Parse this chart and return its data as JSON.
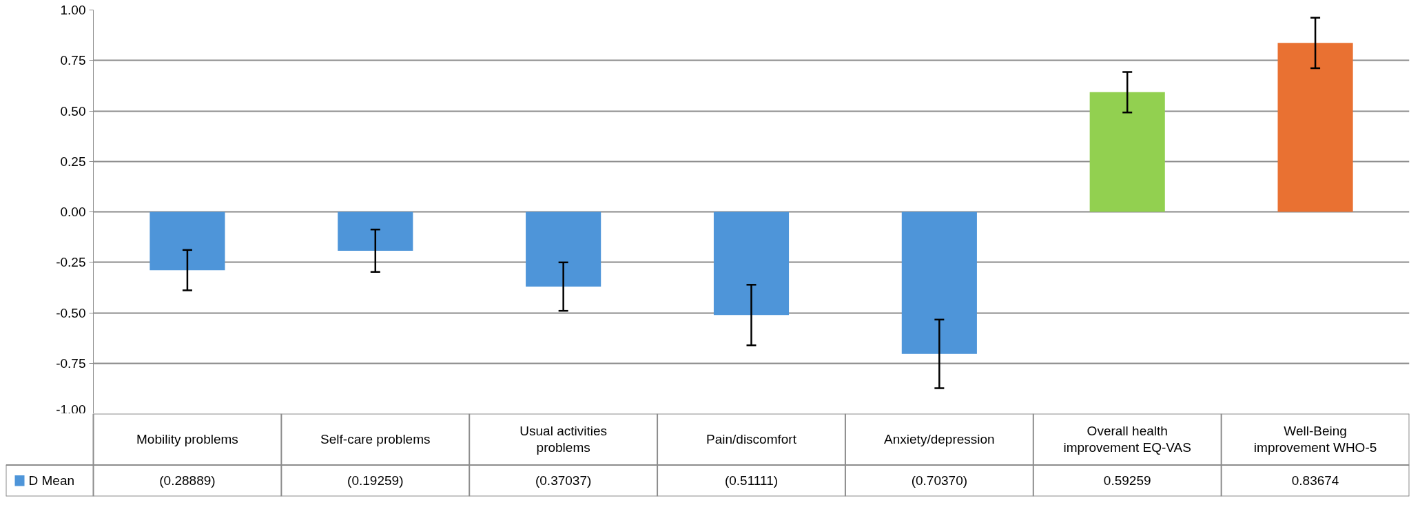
{
  "chart_data": {
    "type": "bar",
    "categories": [
      "Mobility problems",
      "Self-care problems",
      "Usual activities problems",
      "Pain/discomfort",
      "Anxiety/depression",
      "Overall health improvement EQ-VAS",
      "Well-Being improvement WHO-5"
    ],
    "series": [
      {
        "name": "D Mean",
        "color": "#4e95d9",
        "colors": [
          "#4e95d9",
          "#4e95d9",
          "#4e95d9",
          "#4e95d9",
          "#4e95d9",
          "#92d050",
          "#e97132"
        ],
        "values": [
          -0.28889,
          -0.19259,
          -0.37037,
          -0.51111,
          -0.7037,
          0.59259,
          0.83674
        ],
        "errors": [
          0.1,
          0.105,
          0.12,
          0.15,
          0.17,
          0.1,
          0.125
        ],
        "value_labels": [
          "(0.28889)",
          "(0.19259)",
          "(0.37037)",
          "(0.51111)",
          "(0.70370)",
          "0.59259",
          "0.83674"
        ]
      }
    ],
    "ylim": [
      -1,
      1
    ],
    "yticks": [
      {
        "value": -1,
        "label": "-1.00"
      },
      {
        "value": -0.75,
        "label": "-0.75"
      },
      {
        "value": -0.5,
        "label": "-0.50"
      },
      {
        "value": -0.25,
        "label": "-0.25"
      },
      {
        "value": 0,
        "label": "0.00"
      },
      {
        "value": 0.25,
        "label": "0.25"
      },
      {
        "value": 0.5,
        "label": "0.50"
      },
      {
        "value": 0.75,
        "label": "0.75"
      },
      {
        "value": 1,
        "label": "1.00"
      }
    ],
    "grid": "y",
    "legend": "bottom left"
  }
}
